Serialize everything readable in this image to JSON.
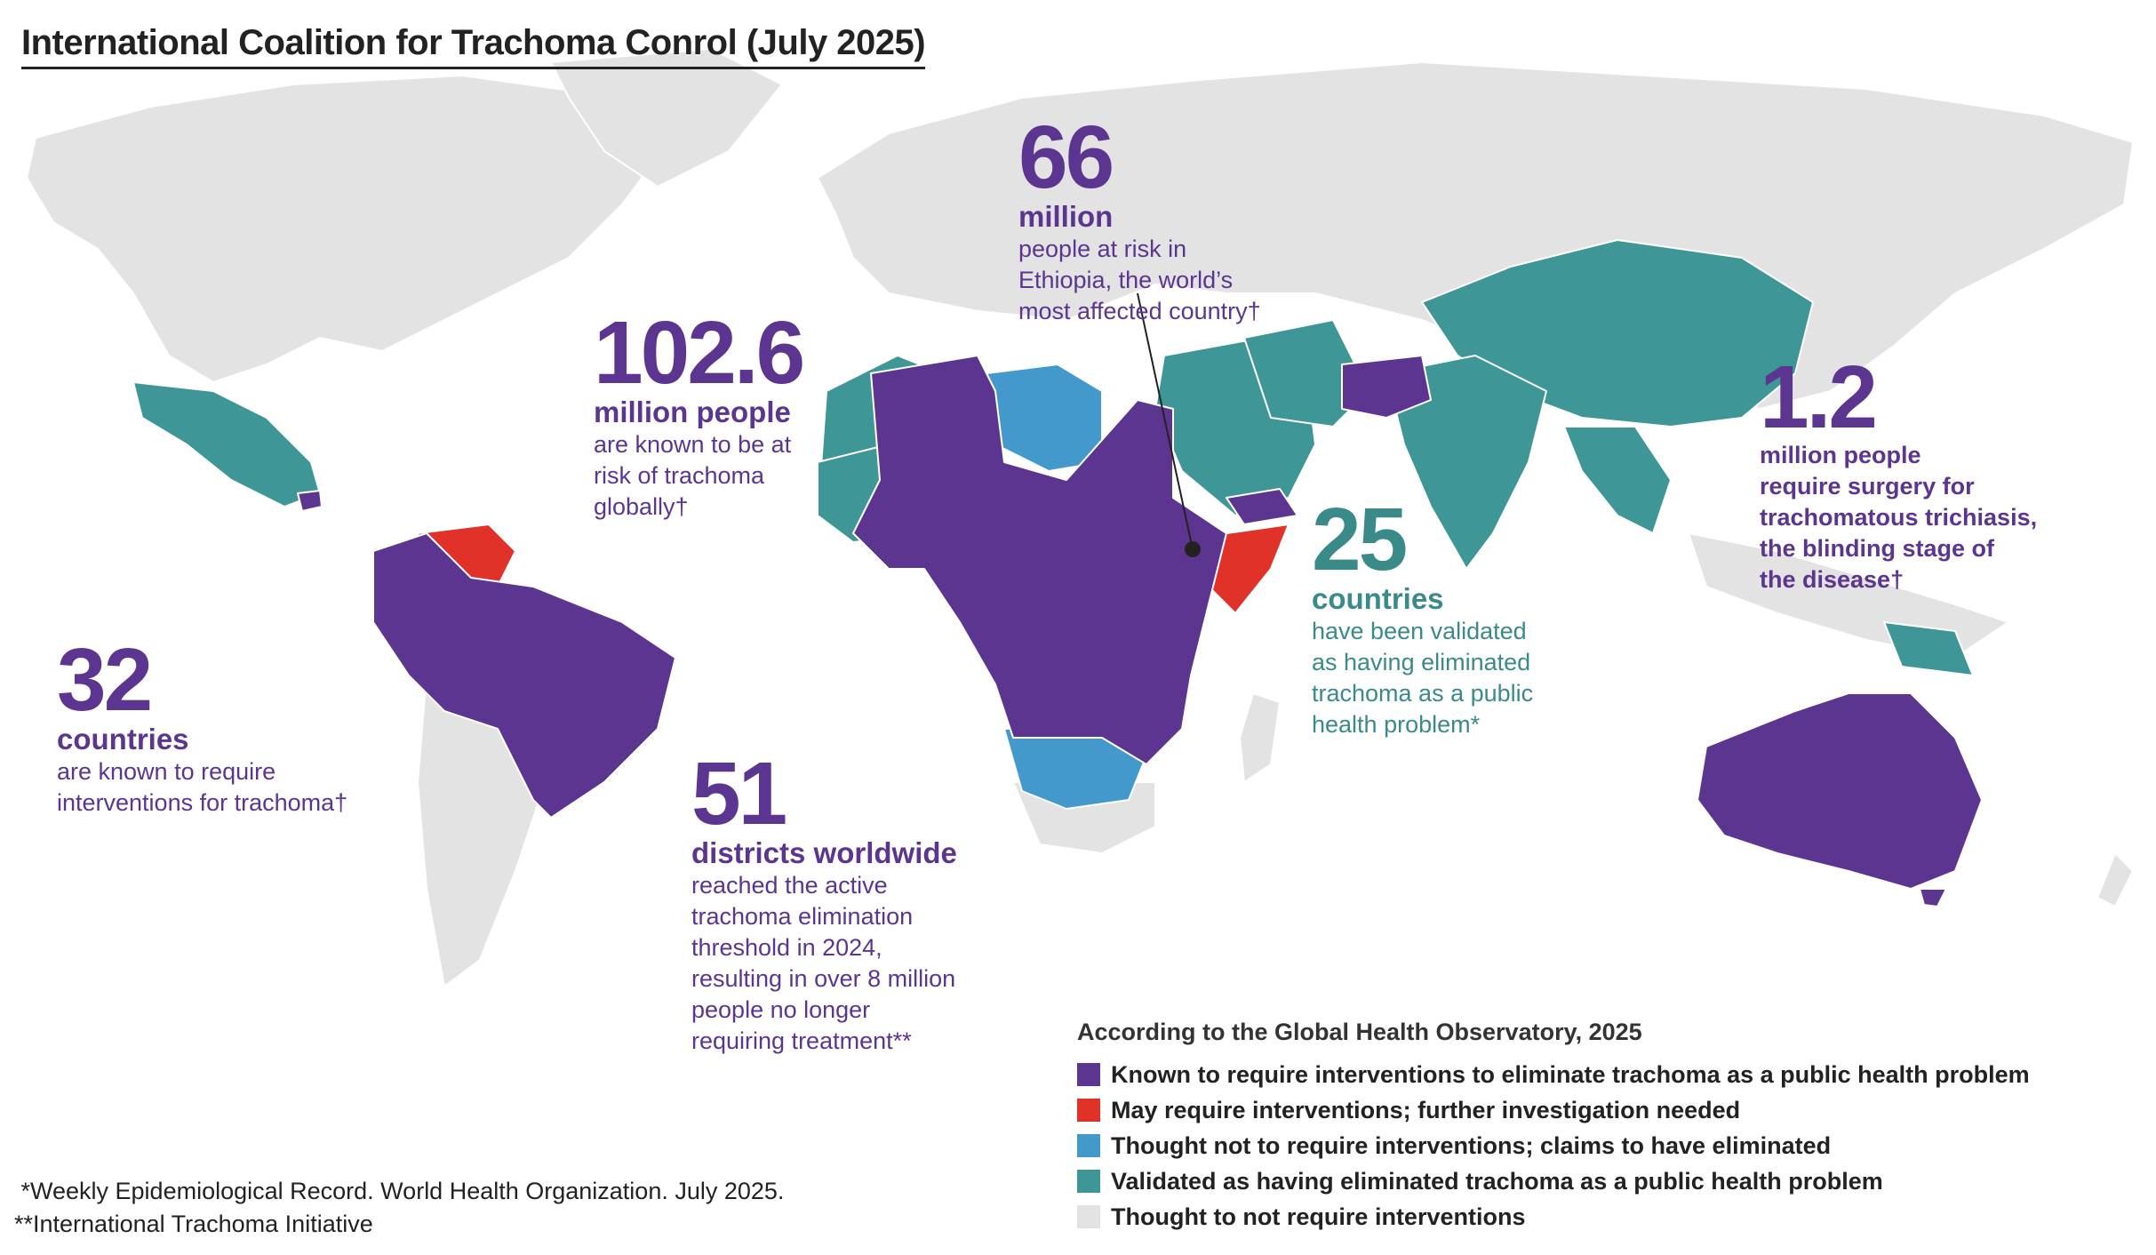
{
  "title": "International Coalition for Trachoma Conrol (July 2025)",
  "colors": {
    "known": "#5c3590",
    "may": "#e03228",
    "thought_eliminated": "#4499cc",
    "validated": "#3f9696",
    "not_required": "#e3e3e3",
    "ocean": "#ffffff"
  },
  "stats": {
    "ethiopia": {
      "number": "66",
      "unit": "million",
      "desc": "people at risk in\nEthiopia, the world’s\nmost affected country†"
    },
    "global": {
      "number": "102.6",
      "unit": "million people",
      "desc": "are known to be at\nrisk of trachoma\nglobally†"
    },
    "surgery": {
      "number": "1.2",
      "unit": "million people",
      "desc": "require surgery for\ntrachomatous trichiasis,\nthe blinding stage of\nthe disease†"
    },
    "validated": {
      "number": "25",
      "unit": "countries",
      "desc": "have been validated\nas having eliminated\ntrachoma as a public\nhealth problem*"
    },
    "countries": {
      "number": "32",
      "unit": "countries",
      "desc": "are known to require\ninterventions for trachoma†"
    },
    "districts": {
      "number": "51",
      "unit": "districts worldwide",
      "desc": "reached the active\ntrachoma elimination\nthreshold in 2024,\nresulting in over 8 million\npeople no longer\nrequiring treatment**"
    }
  },
  "legend": {
    "title": "According to the Global Health Observatory, 2025",
    "items": [
      {
        "label": "Known to require interventions to eliminate trachoma as a public health problem",
        "color": "#5c3590"
      },
      {
        "label": "May require interventions; further investigation needed",
        "color": "#e03228"
      },
      {
        "label": "Thought not to require interventions; claims to have eliminated",
        "color": "#4499cc"
      },
      {
        "label": "Validated as having eliminated trachoma as a public health problem",
        "color": "#3f9696"
      },
      {
        "label": "Thought to not require interventions",
        "color": "#e3e3e3"
      }
    ]
  },
  "footnotes": [
    " *Weekly Epidemiological Record. World Health Organization. July 2025.",
    "**International Trachoma Initiative"
  ]
}
